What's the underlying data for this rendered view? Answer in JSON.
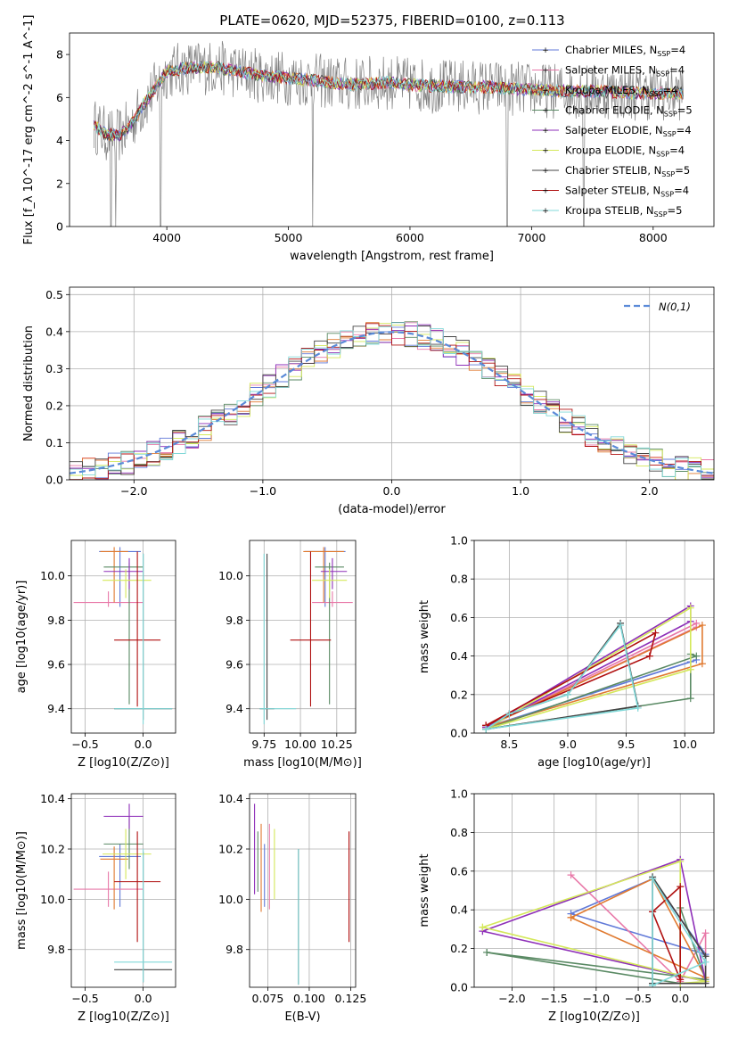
{
  "title": "PLATE=0620, MJD=52375, FIBERID=0100, z=0.113",
  "colors": {
    "Chabrier MILES": "#6079d8",
    "Salpeter MILES": "#e878a8",
    "Kroupa MILES": "#e07a30",
    "Chabrier ELODIE": "#5a8a64",
    "Salpeter ELODIE": "#8e2fb8",
    "Kroupa ELODIE": "#d4e85a",
    "Chabrier STELIB": "#444444",
    "Salpeter STELIB": "#b01010",
    "Kroupa STELIB": "#80d8d8",
    "data": "#808080",
    "normal": "#5a8ad8"
  },
  "chart_data": [
    {
      "id": "spectrum",
      "type": "line",
      "xlabel": "wavelength [Angstrom, rest frame]",
      "ylabel": "Flux [f_λ 10^-17 erg cm^-2 s^-1 A^-1]",
      "xlim": [
        3200,
        8500
      ],
      "ylim": [
        0,
        9
      ],
      "xticks": [
        4000,
        5000,
        6000,
        7000,
        8000
      ],
      "yticks": [
        0,
        2,
        4,
        6,
        8
      ],
      "grid": false,
      "legend_position": "top-right",
      "legend": [
        {
          "name": "Chabrier MILES",
          "label": "Chabrier MILES, N_SSP=4"
        },
        {
          "name": "Salpeter MILES",
          "label": "Salpeter MILES, N_SSP=4"
        },
        {
          "name": "Kroupa MILES",
          "label": "Kroupa MILES, N_SSP=4"
        },
        {
          "name": "Chabrier ELODIE",
          "label": "Chabrier ELODIE, N_SSP=5"
        },
        {
          "name": "Salpeter ELODIE",
          "label": "Salpeter ELODIE, N_SSP=4"
        },
        {
          "name": "Kroupa ELODIE",
          "label": "Kroupa ELODIE, N_SSP=4"
        },
        {
          "name": "Chabrier STELIB",
          "label": "Chabrier STELIB, N_SSP=5"
        },
        {
          "name": "Salpeter STELIB",
          "label": "Salpeter STELIB, N_SSP=4"
        },
        {
          "name": "Kroupa STELIB",
          "label": "Kroupa STELIB, N_SSP=5"
        }
      ],
      "model_shape": {
        "x": [
          3400,
          3500,
          3600,
          3700,
          3800,
          3900,
          4000,
          4200,
          4400,
          4600,
          4800,
          5000,
          5200,
          5500,
          5800,
          6000,
          6300,
          6600,
          6900,
          7200,
          7500,
          7800,
          8000,
          8250
        ],
        "y": [
          4.7,
          4.3,
          4.2,
          4.7,
          5.6,
          6.4,
          7.2,
          7.4,
          7.4,
          7.2,
          7.0,
          6.9,
          6.8,
          6.6,
          6.7,
          6.6,
          6.5,
          6.5,
          6.4,
          6.3,
          6.3,
          6.2,
          6.2,
          6.2
        ]
      },
      "spikes": [
        {
          "x": 3540,
          "y": 0
        },
        {
          "x": 3580,
          "y": 0
        },
        {
          "x": 3950,
          "y": 0
        },
        {
          "x": 5200,
          "y": 0
        },
        {
          "x": 6800,
          "y": 0
        },
        {
          "x": 7430,
          "y": 0
        }
      ]
    },
    {
      "id": "residuals",
      "type": "step",
      "xlabel": "(data-model)/error",
      "ylabel": "Normed distribution",
      "xlim": [
        -2.5,
        2.5
      ],
      "ylim": [
        0,
        0.52
      ],
      "xticks": [
        -2,
        -1,
        0,
        1,
        2
      ],
      "yticks": [
        0.0,
        0.1,
        0.2,
        0.3,
        0.4,
        0.5
      ],
      "grid": true,
      "legend_position": "top-right",
      "legend_label": "N(0,1)",
      "bin_width": 0.1
    },
    {
      "id": "age-vs-Z",
      "type": "errorbar",
      "xlabel": "Z [log10(Z/Z⊙)]",
      "ylabel": "age [log10(age/yr)]",
      "xlim": [
        -0.62,
        0.28
      ],
      "ylim": [
        9.29,
        10.16
      ],
      "xticks": [
        -0.5,
        0.0
      ],
      "yticks": [
        9.4,
        9.6,
        9.8,
        10.0
      ],
      "grid": true,
      "points": [
        {
          "name": "Chabrier MILES",
          "x": -0.2,
          "y": 10.11,
          "xerr": [
            0.18,
            0.18
          ],
          "yerr": [
            0.25,
            0.02
          ]
        },
        {
          "name": "Salpeter MILES",
          "x": -0.3,
          "y": 9.88,
          "xerr": [
            0.3,
            0.3
          ],
          "yerr": [
            0.02,
            0.05
          ]
        },
        {
          "name": "Kroupa MILES",
          "x": -0.25,
          "y": 10.11,
          "xerr": [
            0.12,
            0.12
          ],
          "yerr": [
            0.23,
            0.02
          ]
        },
        {
          "name": "Chabrier ELODIE",
          "x": -0.12,
          "y": 10.04,
          "xerr": [
            0.22,
            0.12
          ],
          "yerr": [
            0.62,
            0.02
          ]
        },
        {
          "name": "Salpeter ELODIE",
          "x": -0.12,
          "y": 10.02,
          "xerr": [
            0.22,
            0.12
          ],
          "yerr": [
            0.08,
            0.06
          ]
        },
        {
          "name": "Kroupa ELODIE",
          "x": -0.15,
          "y": 9.98,
          "xerr": [
            0.2,
            0.22
          ],
          "yerr": [
            0.08,
            0.05
          ]
        },
        {
          "name": "Chabrier STELIB",
          "x": 0.0,
          "y": 9.4,
          "xerr": [
            0.25,
            0.25
          ],
          "yerr": [
            0.05,
            0.7
          ]
        },
        {
          "name": "Salpeter STELIB",
          "x": -0.05,
          "y": 9.71,
          "xerr": [
            0.2,
            0.2
          ],
          "yerr": [
            0.3,
            0.4
          ]
        },
        {
          "name": "Kroupa STELIB",
          "x": 0.0,
          "y": 9.4,
          "xerr": [
            0.25,
            0.25
          ],
          "yerr": [
            0.07,
            0.7
          ]
        }
      ]
    },
    {
      "id": "age-vs-mass",
      "type": "errorbar",
      "xlabel": "mass [log10(M/M⊙)]",
      "ylabel": "",
      "xlim": [
        9.65,
        10.38
      ],
      "ylim": [
        9.29,
        10.16
      ],
      "xticks": [
        9.75,
        10.0,
        10.25
      ],
      "xticklabels": [
        "9.75",
        "10.00",
        "10.25"
      ],
      "yticks": [
        9.4,
        9.6,
        9.8,
        10.0
      ],
      "grid": true,
      "points": [
        {
          "name": "Chabrier MILES",
          "x": 10.17,
          "y": 10.11,
          "xerr": [
            0.14,
            0.14
          ],
          "yerr": [
            0.25,
            0.02
          ]
        },
        {
          "name": "Salpeter MILES",
          "x": 10.22,
          "y": 9.88,
          "xerr": [
            0.14,
            0.14
          ],
          "yerr": [
            0.02,
            0.05
          ]
        },
        {
          "name": "Kroupa MILES",
          "x": 10.16,
          "y": 10.11,
          "xerr": [
            0.14,
            0.14
          ],
          "yerr": [
            0.23,
            0.02
          ]
        },
        {
          "name": "Chabrier ELODIE",
          "x": 10.2,
          "y": 10.04,
          "xerr": [
            0.1,
            0.1
          ],
          "yerr": [
            0.62,
            0.02
          ]
        },
        {
          "name": "Salpeter ELODIE",
          "x": 10.22,
          "y": 10.02,
          "xerr": [
            0.08,
            0.1
          ],
          "yerr": [
            0.08,
            0.06
          ]
        },
        {
          "name": "Kroupa ELODIE",
          "x": 10.2,
          "y": 9.98,
          "xerr": [
            0.12,
            0.12
          ],
          "yerr": [
            0.08,
            0.05
          ]
        },
        {
          "name": "Chabrier STELIB",
          "x": 9.77,
          "y": 9.4,
          "xerr": [
            0.05,
            0.05
          ],
          "yerr": [
            0.05,
            0.7
          ]
        },
        {
          "name": "Salpeter STELIB",
          "x": 10.07,
          "y": 9.71,
          "xerr": [
            0.14,
            0.14
          ],
          "yerr": [
            0.3,
            0.4
          ]
        },
        {
          "name": "Kroupa STELIB",
          "x": 9.75,
          "y": 9.4,
          "xerr": [
            0.03,
            0.22
          ],
          "yerr": [
            0.07,
            0.7
          ]
        }
      ]
    },
    {
      "id": "mass-weight-vs-age",
      "type": "line",
      "xlabel": "age [log10(age/yr)]",
      "ylabel": "mass weight",
      "xlim": [
        8.2,
        10.25
      ],
      "ylim": [
        0,
        1.0
      ],
      "xticks": [
        8.5,
        9.0,
        9.5,
        10.0
      ],
      "yticks": [
        0.0,
        0.2,
        0.4,
        0.6,
        0.8,
        1.0
      ],
      "grid": true,
      "series": [
        {
          "name": "Chabrier MILES",
          "x": [
            8.3,
            10.05,
            10.1,
            8.3
          ],
          "y": [
            0.03,
            0.37,
            0.38,
            0.03
          ]
        },
        {
          "name": "Salpeter MILES",
          "x": [
            8.3,
            10.1,
            10.1,
            8.3
          ],
          "y": [
            0.03,
            0.57,
            0.55,
            0.03
          ]
        },
        {
          "name": "Kroupa MILES",
          "x": [
            8.3,
            10.15,
            10.15,
            8.3
          ],
          "y": [
            0.03,
            0.56,
            0.36,
            0.03
          ]
        },
        {
          "name": "Chabrier ELODIE",
          "x": [
            8.3,
            10.05,
            10.05,
            10.1,
            8.3
          ],
          "y": [
            0.02,
            0.18,
            0.41,
            0.4,
            0.02
          ]
        },
        {
          "name": "Salpeter ELODIE",
          "x": [
            8.3,
            10.05,
            10.05,
            8.3
          ],
          "y": [
            0.03,
            0.66,
            0.58,
            0.03
          ]
        },
        {
          "name": "Kroupa ELODIE",
          "x": [
            8.3,
            10.05,
            10.05,
            8.3
          ],
          "y": [
            0.02,
            0.33,
            0.65,
            0.02
          ]
        },
        {
          "name": "Chabrier STELIB",
          "x": [
            8.3,
            8.5,
            9.0,
            9.45,
            9.6,
            8.3
          ],
          "y": [
            0.02,
            0.1,
            0.2,
            0.57,
            0.14,
            0.02
          ]
        },
        {
          "name": "Salpeter STELIB",
          "x": [
            8.3,
            9.7,
            9.75,
            8.3
          ],
          "y": [
            0.04,
            0.4,
            0.52,
            0.04
          ]
        },
        {
          "name": "Kroupa STELIB",
          "x": [
            8.3,
            8.5,
            9.0,
            9.45,
            9.6,
            8.3
          ],
          "y": [
            0.02,
            0.1,
            0.2,
            0.56,
            0.13,
            0.02
          ]
        }
      ]
    },
    {
      "id": "mass-vs-Z",
      "type": "errorbar",
      "xlabel": "Z [log10(Z/Z⊙)]",
      "ylabel": "mass [log10(M/M⊙)]",
      "xlim": [
        -0.62,
        0.28
      ],
      "ylim": [
        9.65,
        10.42
      ],
      "xticks": [
        -0.5,
        0.0
      ],
      "yticks": [
        9.8,
        10.0,
        10.2,
        10.4
      ],
      "grid": true,
      "points": [
        {
          "name": "Chabrier MILES",
          "x": -0.2,
          "y": 10.17,
          "xerr": [
            0.18,
            0.18
          ],
          "yerr": [
            0.2,
            0.05
          ]
        },
        {
          "name": "Salpeter MILES",
          "x": -0.3,
          "y": 10.04,
          "xerr": [
            0.3,
            0.3
          ],
          "yerr": [
            0.07,
            0.07
          ]
        },
        {
          "name": "Kroupa MILES",
          "x": -0.25,
          "y": 10.16,
          "xerr": [
            0.12,
            0.12
          ],
          "yerr": [
            0.2,
            0.05
          ]
        },
        {
          "name": "Chabrier ELODIE",
          "x": -0.12,
          "y": 10.22,
          "xerr": [
            0.22,
            0.12
          ],
          "yerr": [
            0.1,
            0.1
          ]
        },
        {
          "name": "Salpeter ELODIE",
          "x": -0.12,
          "y": 10.33,
          "xerr": [
            0.22,
            0.12
          ],
          "yerr": [
            0.05,
            0.05
          ]
        },
        {
          "name": "Kroupa ELODIE",
          "x": -0.15,
          "y": 10.18,
          "xerr": [
            0.2,
            0.22
          ],
          "yerr": [
            0.1,
            0.1
          ]
        },
        {
          "name": "Chabrier STELIB",
          "x": 0.0,
          "y": 9.72,
          "xerr": [
            0.25,
            0.25
          ],
          "yerr": [
            0.05,
            0.47
          ]
        },
        {
          "name": "Salpeter STELIB",
          "x": -0.05,
          "y": 10.07,
          "xerr": [
            0.2,
            0.2
          ],
          "yerr": [
            0.24,
            0.2
          ]
        },
        {
          "name": "Kroupa STELIB",
          "x": 0.0,
          "y": 9.75,
          "xerr": [
            0.25,
            0.25
          ],
          "yerr": [
            0.08,
            0.45
          ]
        }
      ]
    },
    {
      "id": "mass-vs-EBV",
      "type": "errorbar",
      "xlabel": "E(B-V)",
      "ylabel": "",
      "xlim": [
        0.064,
        0.128
      ],
      "ylim": [
        9.65,
        10.42
      ],
      "xticks": [
        0.075,
        0.1,
        0.125
      ],
      "xticklabels": [
        "0.075",
        "0.100",
        "0.125"
      ],
      "yticks": [
        9.8,
        10.0,
        10.2,
        10.4
      ],
      "grid": true,
      "points": [
        {
          "name": "Chabrier MILES",
          "x": 0.073,
          "y": 10.17,
          "xerr": [
            0,
            0
          ],
          "yerr": [
            0.2,
            0.05
          ]
        },
        {
          "name": "Salpeter MILES",
          "x": 0.076,
          "y": 10.1,
          "xerr": [
            0,
            0
          ],
          "yerr": [
            0.14,
            0.2
          ]
        },
        {
          "name": "Kroupa MILES",
          "x": 0.071,
          "y": 10.1,
          "xerr": [
            0,
            0
          ],
          "yerr": [
            0.15,
            0.2
          ]
        },
        {
          "name": "Chabrier ELODIE",
          "x": 0.069,
          "y": 10.15,
          "xerr": [
            0,
            0
          ],
          "yerr": [
            0.12,
            0.12
          ]
        },
        {
          "name": "Salpeter ELODIE",
          "x": 0.067,
          "y": 10.2,
          "xerr": [
            0,
            0
          ],
          "yerr": [
            0.18,
            0.18
          ]
        },
        {
          "name": "Kroupa ELODIE",
          "x": 0.079,
          "y": 10.14,
          "xerr": [
            0,
            0
          ],
          "yerr": [
            0.14,
            0.14
          ]
        },
        {
          "name": "Chabrier STELIB",
          "x": 0.0935,
          "y": 9.93,
          "xerr": [
            0,
            0
          ],
          "yerr": [
            0.27,
            0.27
          ]
        },
        {
          "name": "Salpeter STELIB",
          "x": 0.124,
          "y": 10.05,
          "xerr": [
            0,
            0
          ],
          "yerr": [
            0.22,
            0.22
          ]
        },
        {
          "name": "Kroupa STELIB",
          "x": 0.0935,
          "y": 9.93,
          "xerr": [
            0,
            0
          ],
          "yerr": [
            0.27,
            0.27
          ]
        }
      ]
    },
    {
      "id": "mass-weight-vs-Z",
      "type": "line",
      "xlabel": "Z [log10(Z/Z⊙)]",
      "ylabel": "mass weight",
      "xlim": [
        -2.45,
        0.4
      ],
      "ylim": [
        0,
        1.0
      ],
      "xticks": [
        -2.0,
        -1.5,
        -1.0,
        -0.5,
        0.0
      ],
      "yticks": [
        0.0,
        0.2,
        0.4,
        0.6,
        0.8,
        1.0
      ],
      "grid": true,
      "series": [
        {
          "name": "Chabrier MILES",
          "x": [
            -1.3,
            -0.33,
            0.3,
            -1.3
          ],
          "y": [
            0.38,
            0.56,
            0.17,
            0.38
          ]
        },
        {
          "name": "Salpeter MILES",
          "x": [
            -1.3,
            0.0,
            0.3,
            0.3
          ],
          "y": [
            0.58,
            0.03,
            0.28,
            0.03
          ]
        },
        {
          "name": "Kroupa MILES",
          "x": [
            -1.3,
            -0.33,
            0.3,
            -1.3
          ],
          "y": [
            0.36,
            0.56,
            0.05,
            0.36
          ]
        },
        {
          "name": "Chabrier ELODIE",
          "x": [
            -2.3,
            0.0,
            0.0,
            0.3,
            -2.3
          ],
          "y": [
            0.18,
            0.02,
            0.41,
            0.04,
            0.18
          ]
        },
        {
          "name": "Salpeter ELODIE",
          "x": [
            -2.35,
            0.0,
            0.3,
            -2.35
          ],
          "y": [
            0.29,
            0.66,
            0.03,
            0.29
          ]
        },
        {
          "name": "Kroupa ELODIE",
          "x": [
            -2.35,
            0.0,
            0.0,
            0.3,
            -2.35
          ],
          "y": [
            0.31,
            0.65,
            0.02,
            0.03,
            0.31
          ]
        },
        {
          "name": "Chabrier STELIB",
          "x": [
            -0.33,
            -0.33,
            0.3,
            0.3,
            -0.33
          ],
          "y": [
            0.02,
            0.57,
            0.16,
            0.02,
            0.02
          ]
        },
        {
          "name": "Salpeter STELIB",
          "x": [
            -0.33,
            0.0,
            0.0,
            -0.33
          ],
          "y": [
            0.39,
            0.04,
            0.52,
            0.39
          ]
        },
        {
          "name": "Kroupa STELIB",
          "x": [
            -0.33,
            -0.33,
            0.3,
            -0.33
          ],
          "y": [
            0.01,
            0.56,
            0.13,
            0.01
          ]
        }
      ]
    }
  ]
}
